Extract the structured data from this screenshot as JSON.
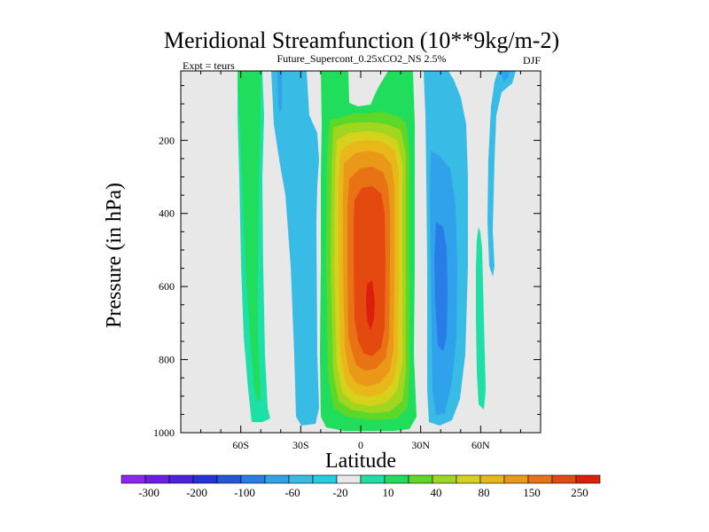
{
  "chart_data": {
    "type": "heatmap",
    "title": "Meridional Streamfunction (10**9kg/m-2)",
    "subtitle": "Future_Supercont_0.25xCO2_NS 2.5%",
    "left_label": "Expt = teurs",
    "right_label": "DJF",
    "xlabel": "Latitude",
    "ylabel": "Pressure (in hPa)",
    "xlim": [
      -90,
      90
    ],
    "ylim": [
      1000,
      10
    ],
    "y_reversed": true,
    "x_ticks": [
      {
        "value": -60,
        "label": "60S"
      },
      {
        "value": -30,
        "label": "30S"
      },
      {
        "value": 0,
        "label": "0"
      },
      {
        "value": 30,
        "label": "30N"
      },
      {
        "value": 60,
        "label": "60N"
      }
    ],
    "y_ticks": [
      {
        "value": 200,
        "label": "200"
      },
      {
        "value": 400,
        "label": "400"
      },
      {
        "value": 600,
        "label": "600"
      },
      {
        "value": 800,
        "label": "800"
      },
      {
        "value": 1000,
        "label": "1000"
      }
    ],
    "background_color": "#e8e8e8",
    "colorbar": {
      "colors": [
        "#8e26f2",
        "#6820e8",
        "#4a22e0",
        "#2434d8",
        "#2456dc",
        "#287ee6",
        "#30a2ec",
        "#38bce6",
        "#22cfe0",
        "#e8e8e8",
        "#1ee0a6",
        "#20dd5c",
        "#5ed828",
        "#a0d620",
        "#d6d21c",
        "#e8b81a",
        "#ea9818",
        "#e87214",
        "#e44a10",
        "#dc1e0c"
      ],
      "tick_labels": [
        "-300",
        "-200",
        "-100",
        "-60",
        "-20",
        "10",
        "40",
        "80",
        "150",
        "250"
      ]
    },
    "contour_regions": [
      {
        "level": "10 to 20",
        "color": "#1ee0a6",
        "lat": [
          -67,
          -54
        ],
        "p": [
          20,
          975
        ]
      },
      {
        "level": "20 to 40",
        "color": "#20dd5c",
        "lat": [
          -66,
          -55
        ],
        "p": [
          20,
          870
        ]
      },
      {
        "level": "-20 to -10",
        "color": "#38bce6",
        "lat": [
          -50,
          -33
        ],
        "p": [
          20,
          990
        ]
      },
      {
        "level": "-40 to -20",
        "color": "#30a2ec",
        "lat": [
          -44,
          -41
        ],
        "p": [
          20,
          130
        ]
      },
      {
        "level": "20 to 40",
        "color": "#20dd5c",
        "lat": [
          -18,
          30
        ],
        "p": [
          20,
          990
        ]
      },
      {
        "level": "40 to 60",
        "color": "#5ed828",
        "lat": [
          -15,
          27
        ],
        "p": [
          140,
          960
        ]
      },
      {
        "level": "60 to 80",
        "color": "#a0d620",
        "lat": [
          -13,
          24
        ],
        "p": [
          150,
          950
        ]
      },
      {
        "level": "80 to 100",
        "color": "#d6d21c",
        "lat": [
          -12,
          22
        ],
        "p": [
          180,
          930
        ]
      },
      {
        "level": "100 to 150",
        "color": "#e8b81a",
        "lat": [
          -10,
          20
        ],
        "p": [
          200,
          910
        ]
      },
      {
        "level": "150 to 200",
        "color": "#ea9818",
        "lat": [
          -8,
          18
        ],
        "p": [
          220,
          890
        ]
      },
      {
        "level": "200 to 250",
        "color": "#e87214",
        "lat": [
          -6,
          15
        ],
        "p": [
          260,
          860
        ]
      },
      {
        "level": "250 to 300",
        "color": "#e44a10",
        "lat": [
          -3,
          12
        ],
        "p": [
          300,
          820
        ]
      },
      {
        "level": "300 to 350",
        "color": "#dc1e0c",
        "lat": [
          4,
          8
        ],
        "p": [
          570,
          720
        ]
      },
      {
        "level": "-20 to -10",
        "color": "#38bce6",
        "lat": [
          33,
          50
        ],
        "p": [
          20,
          990
        ]
      },
      {
        "level": "-40 to -20",
        "color": "#30a2ec",
        "lat": [
          36,
          48
        ],
        "p": [
          250,
          960
        ]
      },
      {
        "level": "-60 to -40",
        "color": "#287ee6",
        "lat": [
          38,
          45
        ],
        "p": [
          420,
          800
        ]
      },
      {
        "level": "10 to 20",
        "color": "#1ee0a6",
        "lat": [
          58,
          62
        ],
        "p": [
          420,
          930
        ]
      },
      {
        "level": "-20 to -10",
        "color": "#38bce6",
        "lat": [
          62,
          76
        ],
        "p": [
          20,
          450
        ]
      },
      {
        "level": "-40 to -20",
        "color": "#30a2ec",
        "lat": [
          68,
          74
        ],
        "p": [
          20,
          60
        ]
      }
    ]
  }
}
